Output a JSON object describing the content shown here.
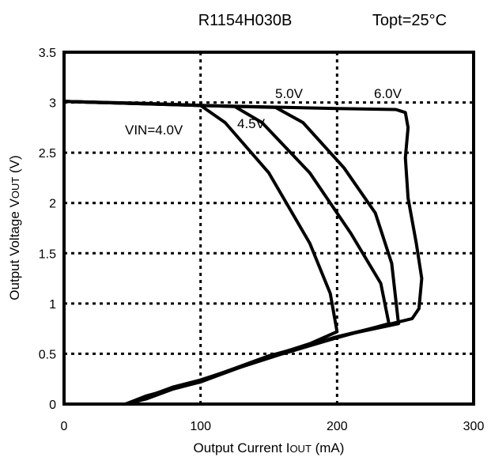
{
  "chart_data": {
    "type": "line",
    "title_left": "R1154H030B",
    "title_right": "Topt=25°C",
    "xlabel": {
      "prefix": "Output Current I",
      "sub": "OUT",
      "suffix": " (mA)"
    },
    "ylabel": {
      "prefix": "Output Voltage V",
      "sub": "OUT",
      "suffix": " (V)"
    },
    "xlim": [
      0,
      300
    ],
    "ylim": [
      0,
      3.5
    ],
    "xticks": [
      0,
      100,
      200,
      300
    ],
    "yticks": [
      0,
      0.5,
      1,
      1.5,
      2,
      2.5,
      3,
      3.5
    ],
    "ytick_labels": [
      "0",
      "0.5",
      "1",
      "1.5",
      "2",
      "2.5",
      "3",
      "3.5"
    ],
    "grid": true,
    "series": [
      {
        "name": "VIN=4.0V",
        "points": [
          [
            0,
            3.01
          ],
          [
            60,
            2.99
          ],
          [
            100,
            2.97
          ],
          [
            118,
            2.8
          ],
          [
            150,
            2.3
          ],
          [
            180,
            1.6
          ],
          [
            195,
            1.1
          ],
          [
            200,
            0.72
          ],
          [
            180,
            0.6
          ],
          [
            150,
            0.47
          ],
          [
            120,
            0.32
          ],
          [
            100,
            0.22
          ],
          [
            80,
            0.15
          ],
          [
            60,
            0.05
          ],
          [
            45,
            0
          ]
        ]
      },
      {
        "name": "4.5V",
        "points": [
          [
            0,
            3.01
          ],
          [
            80,
            2.98
          ],
          [
            125,
            2.96
          ],
          [
            145,
            2.8
          ],
          [
            180,
            2.3
          ],
          [
            210,
            1.7
          ],
          [
            232,
            1.2
          ],
          [
            238,
            0.8
          ],
          [
            200,
            0.66
          ],
          [
            150,
            0.48
          ],
          [
            120,
            0.33
          ],
          [
            100,
            0.22
          ],
          [
            80,
            0.16
          ],
          [
            60,
            0.06
          ],
          [
            45,
            0
          ]
        ]
      },
      {
        "name": "5.0V",
        "points": [
          [
            0,
            3.01
          ],
          [
            100,
            2.97
          ],
          [
            155,
            2.95
          ],
          [
            175,
            2.8
          ],
          [
            205,
            2.35
          ],
          [
            228,
            1.9
          ],
          [
            240,
            1.4
          ],
          [
            245,
            0.8
          ],
          [
            210,
            0.7
          ],
          [
            160,
            0.5
          ],
          [
            130,
            0.37
          ],
          [
            100,
            0.24
          ],
          [
            80,
            0.17
          ],
          [
            60,
            0.07
          ],
          [
            45,
            0
          ]
        ]
      },
      {
        "name": "6.0V",
        "points": [
          [
            0,
            3.01
          ],
          [
            100,
            2.97
          ],
          [
            200,
            2.94
          ],
          [
            243,
            2.93
          ],
          [
            250,
            2.9
          ],
          [
            252,
            2.75
          ],
          [
            250,
            2.45
          ],
          [
            252,
            2.05
          ],
          [
            258,
            1.6
          ],
          [
            262,
            1.25
          ],
          [
            260,
            0.95
          ],
          [
            255,
            0.85
          ],
          [
            240,
            0.8
          ],
          [
            200,
            0.67
          ],
          [
            150,
            0.47
          ],
          [
            120,
            0.33
          ],
          [
            90,
            0.19
          ],
          [
            60,
            0.08
          ],
          [
            45,
            0
          ]
        ]
      }
    ]
  },
  "series_labels": {
    "vin_40": "VIN=4.0V",
    "vin_45": "4.5V",
    "vin_50": "5.0V",
    "vin_60": "6.0V"
  }
}
